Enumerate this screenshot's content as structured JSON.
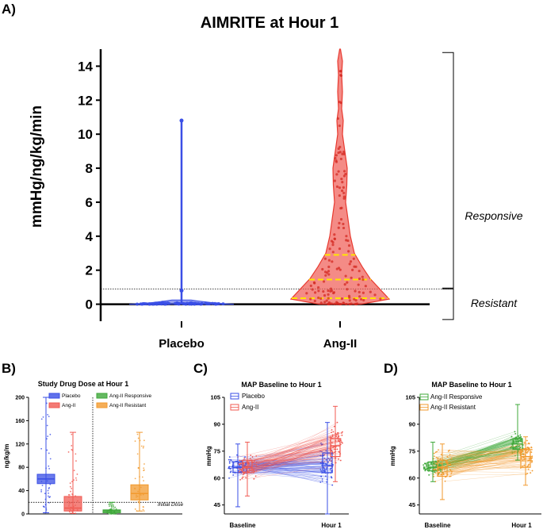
{
  "panel_labels": {
    "a": "A)",
    "b": "B)",
    "c": "C)",
    "d": "D)"
  },
  "colors": {
    "placebo": "#3a4fe6",
    "angii": "#f05a52",
    "responsive": "#3fa83a",
    "resistant": "#f29a2e",
    "median": "#ffe600"
  },
  "chart_data": [
    {
      "id": "A",
      "type": "violin",
      "title": "AIMRITE at Hour 1",
      "ylabel": "mmHg/ng/kg/min",
      "ylim": [
        -1,
        15
      ],
      "yticks": [
        0,
        2,
        4,
        6,
        8,
        10,
        12,
        14
      ],
      "categories": [
        "Placebo",
        "Ang-II"
      ],
      "threshold": 0.9,
      "series": [
        {
          "name": "Placebo",
          "median": 0.05,
          "q1": 0.0,
          "q3": 0.15,
          "max": 10.8,
          "min": 0.0
        },
        {
          "name": "Ang-II",
          "median": 1.45,
          "q1": 0.35,
          "q3": 2.9,
          "max": 15.0,
          "min": 0.0
        }
      ],
      "brackets": [
        {
          "label": "Responsive",
          "from": 0.95,
          "to": 14.8
        },
        {
          "label": "Resistant",
          "from": -0.9,
          "to": 0.9
        }
      ]
    },
    {
      "id": "B",
      "type": "box",
      "title": "Study Drug Dose at Hour 1",
      "ylabel": "ng/kg/m",
      "ylim": [
        0,
        200
      ],
      "yticks": [
        0,
        40,
        80,
        120,
        160,
        200
      ],
      "reference_line": {
        "value": 20,
        "label": "Initial Dose"
      },
      "legend": [
        "Placebo",
        "Ang-II",
        "Ang-II Responsive",
        "Ang-II Resistant"
      ],
      "series": [
        {
          "name": "Placebo",
          "min": 2,
          "q1": 52,
          "median": 60,
          "q3": 68,
          "max": 200
        },
        {
          "name": "Ang-II",
          "min": 1,
          "q1": 5,
          "median": 10,
          "q3": 30,
          "max": 140
        },
        {
          "name": "Ang-II Responsive",
          "min": 0,
          "q1": 2,
          "median": 5,
          "q3": 7,
          "max": 20
        },
        {
          "name": "Ang-II Resistant",
          "min": 5,
          "q1": 24,
          "median": 35,
          "q3": 50,
          "max": 140
        }
      ]
    },
    {
      "id": "C",
      "type": "paired_box",
      "title": "MAP Baseline to Hour 1",
      "ylabel": "mmHg",
      "ylim": [
        40,
        105
      ],
      "yticks": [
        45,
        60,
        75,
        90,
        105
      ],
      "categories": [
        "Baseline",
        "Hour 1"
      ],
      "series": [
        {
          "name": "Placebo",
          "baseline": {
            "min": 44,
            "q1": 63,
            "median": 66,
            "q3": 69,
            "max": 79
          },
          "hour1": {
            "min": 40,
            "q1": 63,
            "median": 67,
            "q3": 74,
            "max": 91
          }
        },
        {
          "name": "Ang-II",
          "baseline": {
            "min": 50,
            "q1": 63,
            "median": 66,
            "q3": 70,
            "max": 80
          },
          "hour1": {
            "min": 58,
            "q1": 72,
            "median": 78,
            "q3": 82,
            "max": 100
          }
        }
      ]
    },
    {
      "id": "D",
      "type": "paired_box",
      "title": "MAP Baseline to Hour 1",
      "ylabel": "mmHg",
      "ylim": [
        40,
        105
      ],
      "yticks": [
        45,
        60,
        75,
        90,
        105
      ],
      "categories": [
        "Baseline",
        "Hour 1"
      ],
      "series": [
        {
          "name": "Ang-II Responsive",
          "baseline": {
            "min": 58,
            "q1": 64,
            "median": 66,
            "q3": 69,
            "max": 80
          },
          "hour1": {
            "min": 70,
            "q1": 76,
            "median": 79,
            "q3": 82,
            "max": 101
          }
        },
        {
          "name": "Ang-II Resistant",
          "baseline": {
            "min": 48,
            "q1": 61,
            "median": 66,
            "q3": 70,
            "max": 79
          },
          "hour1": {
            "min": 56,
            "q1": 66,
            "median": 72,
            "q3": 76,
            "max": 83
          }
        }
      ]
    }
  ]
}
